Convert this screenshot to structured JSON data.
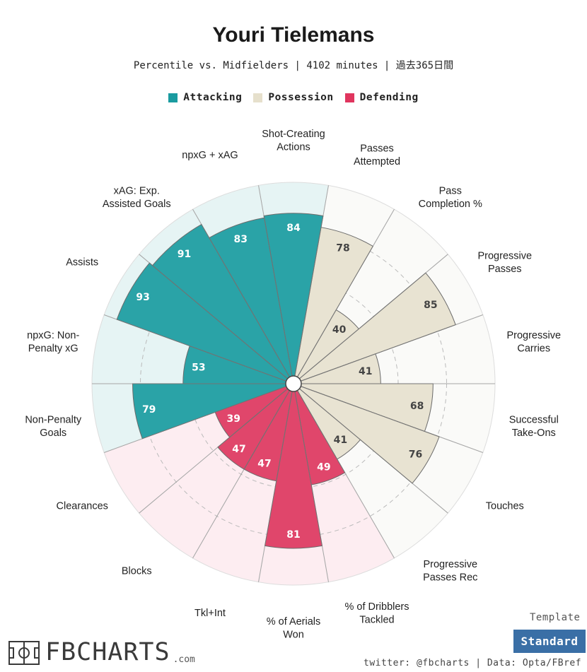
{
  "title": "Youri Tielemans",
  "subtitle": "Percentile vs. Midfielders | 4102 minutes | 過去365日間",
  "legend": [
    {
      "label": "Attacking",
      "color": "#1a9ba0"
    },
    {
      "label": "Possession",
      "color": "#e6e0cc"
    },
    {
      "label": "Defending",
      "color": "#e0355e"
    }
  ],
  "template": {
    "label": "Template",
    "button": "Standard"
  },
  "credit": "twitter: @fbcharts | Data: Opta/FBref",
  "logo": {
    "text": "FBCHARTS",
    "suffix": ".com"
  },
  "chart_data": {
    "type": "polar-bar",
    "rlim": [
      0,
      100
    ],
    "grid": true,
    "legend_position": "top",
    "categories": [
      {
        "label": "Shot-Creating\nActions",
        "value": 84,
        "group": "Attacking"
      },
      {
        "label": "Passes\nAttempted",
        "value": 78,
        "group": "Possession"
      },
      {
        "label": "Pass\nCompletion %",
        "value": 40,
        "group": "Possession"
      },
      {
        "label": "Progressive\nPasses",
        "value": 85,
        "group": "Possession"
      },
      {
        "label": "Progressive\nCarries",
        "value": 41,
        "group": "Possession"
      },
      {
        "label": "Successful\nTake-Ons",
        "value": 68,
        "group": "Possession"
      },
      {
        "label": "Touches",
        "value": 76,
        "group": "Possession"
      },
      {
        "label": "Progressive\nPasses Rec",
        "value": 41,
        "group": "Possession"
      },
      {
        "label": "% of Dribblers\nTackled",
        "value": 49,
        "group": "Defending"
      },
      {
        "label": "% of Aerials\nWon",
        "value": 81,
        "group": "Defending"
      },
      {
        "label": "Tkl+Int",
        "value": 47,
        "group": "Defending"
      },
      {
        "label": "Blocks",
        "value": 47,
        "group": "Defending"
      },
      {
        "label": "Clearances",
        "value": 39,
        "group": "Defending"
      },
      {
        "label": "Non-Penalty\nGoals",
        "value": 79,
        "group": "Attacking"
      },
      {
        "label": "npxG: Non-\nPenalty xG",
        "value": 53,
        "group": "Attacking"
      },
      {
        "label": "Assists",
        "value": 93,
        "group": "Attacking"
      },
      {
        "label": "xAG: Exp.\nAssisted Goals",
        "value": 91,
        "group": "Attacking"
      },
      {
        "label": "npxG + xAG",
        "value": 83,
        "group": "Attacking"
      }
    ],
    "colors": {
      "Attacking": {
        "bar": "#2aa3a7",
        "bg": "#e6f4f4",
        "text": "#ffffff"
      },
      "Possession": {
        "bar": "#e8e3d2",
        "bg": "#fafaf8",
        "text": "#444444"
      },
      "Defending": {
        "bar": "#e0466b",
        "bg": "#fdedf1",
        "text": "#ffffff"
      }
    }
  }
}
